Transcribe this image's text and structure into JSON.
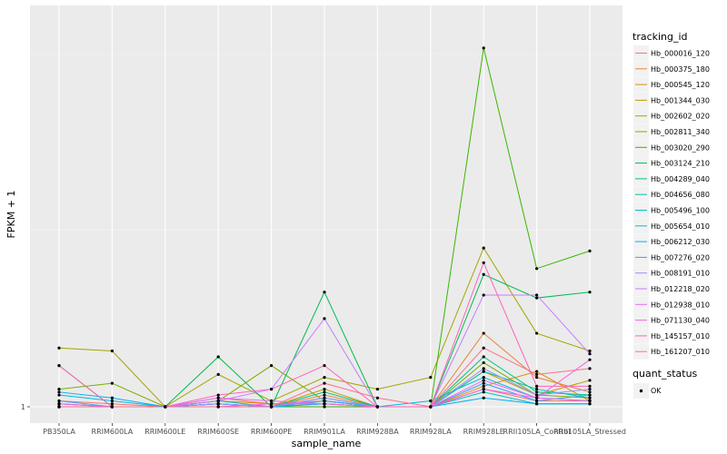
{
  "chart_data": {
    "type": "line",
    "xlabel": "sample_name",
    "ylabel": "FPKM + 1",
    "categories": [
      "PB350LA",
      "RRIM600LA",
      "RRIM600LE",
      "RRIM600SE",
      "RRIM600PE",
      "RRIM901LA",
      "RRIM928BA",
      "RRIM928LA",
      "RRIM928LE",
      "RRII105LA_Control",
      "RRII105LA_Stressed"
    ],
    "y_ticks": [
      {
        "value": 1,
        "label": "1"
      }
    ],
    "ylim": [
      1,
      2.3
    ],
    "grid": true,
    "legend_position": "right",
    "legends": [
      {
        "title": "tracking_id"
      },
      {
        "title": "quant_status",
        "items": [
          {
            "label": "OK"
          }
        ]
      }
    ],
    "series": [
      {
        "name": "Hb_000016_120",
        "color": "#F8766D",
        "values": [
          1.02,
          1.01,
          1.0,
          1.03,
          1.01,
          1.02,
          1.0,
          1.0,
          1.06,
          1.02,
          1.02
        ]
      },
      {
        "name": "Hb_000375_180",
        "color": "#EA8331",
        "values": [
          1.01,
          1.0,
          1.0,
          1.01,
          1.0,
          1.04,
          1.0,
          1.0,
          1.25,
          1.1,
          1.05
        ]
      },
      {
        "name": "Hb_000545_120",
        "color": "#D89000",
        "values": [
          1.0,
          1.0,
          1.0,
          1.02,
          1.01,
          1.01,
          1.0,
          1.0,
          1.07,
          1.12,
          1.02
        ]
      },
      {
        "name": "Hb_001344_030",
        "color": "#C09B00",
        "values": [
          1.01,
          1.0,
          1.0,
          1.01,
          1.0,
          1.06,
          1.0,
          1.0,
          1.12,
          1.04,
          1.09
        ]
      },
      {
        "name": "Hb_002602_020",
        "color": "#A3A500",
        "values": [
          1.2,
          1.19,
          1.0,
          1.11,
          1.02,
          1.1,
          1.06,
          1.1,
          1.54,
          1.25,
          1.19
        ]
      },
      {
        "name": "Hb_002811_340",
        "color": "#7CAE00",
        "values": [
          1.06,
          1.08,
          1.0,
          1.02,
          1.14,
          1.02,
          1.0,
          1.0,
          1.15,
          1.04,
          1.03
        ]
      },
      {
        "name": "Hb_003020_290",
        "color": "#39B600",
        "values": [
          1.0,
          1.0,
          1.0,
          1.01,
          1.0,
          1.0,
          1.0,
          1.0,
          2.22,
          1.47,
          1.53
        ]
      },
      {
        "name": "Hb_003124_210",
        "color": "#00BB4E",
        "values": [
          1.14,
          1.0,
          1.0,
          1.17,
          1.0,
          1.39,
          1.0,
          1.0,
          1.45,
          1.37,
          1.39
        ]
      },
      {
        "name": "Hb_004289_040",
        "color": "#00BF7D",
        "values": [
          1.01,
          1.0,
          1.0,
          1.0,
          1.0,
          1.05,
          1.0,
          1.0,
          1.17,
          1.05,
          1.04
        ]
      },
      {
        "name": "Hb_004656_080",
        "color": "#00C1A3",
        "values": [
          1.0,
          1.0,
          1.0,
          1.01,
          1.0,
          1.02,
          1.0,
          1.0,
          1.12,
          1.06,
          1.03
        ]
      },
      {
        "name": "Hb_005496_100",
        "color": "#00BFC4",
        "values": [
          1.0,
          1.0,
          1.0,
          1.0,
          1.0,
          1.01,
          1.0,
          1.0,
          1.05,
          1.01,
          1.01
        ]
      },
      {
        "name": "Hb_005654_010",
        "color": "#00BAE0",
        "values": [
          1.04,
          1.02,
          1.0,
          1.02,
          1.0,
          1.03,
          1.0,
          1.02,
          1.1,
          1.03,
          1.02
        ]
      },
      {
        "name": "Hb_006212_030",
        "color": "#00B0F6",
        "values": [
          1.05,
          1.03,
          1.0,
          1.01,
          1.0,
          1.01,
          1.0,
          1.0,
          1.03,
          1.01,
          1.01
        ]
      },
      {
        "name": "Hb_007276_020",
        "color": "#35A2FF",
        "values": [
          1.02,
          1.0,
          1.0,
          1.01,
          1.0,
          1.02,
          1.0,
          1.0,
          1.08,
          1.02,
          1.04
        ]
      },
      {
        "name": "Hb_008191_010",
        "color": "#9590FF",
        "values": [
          1.0,
          1.0,
          1.0,
          1.01,
          1.0,
          1.03,
          1.0,
          1.0,
          1.13,
          1.04,
          1.06
        ]
      },
      {
        "name": "Hb_012218_020",
        "color": "#C77CFF",
        "values": [
          1.0,
          1.0,
          1.0,
          1.02,
          1.06,
          1.3,
          1.0,
          1.0,
          1.38,
          1.38,
          1.18
        ]
      },
      {
        "name": "Hb_012938_010",
        "color": "#E76BF3",
        "values": [
          1.01,
          1.0,
          1.0,
          1.03,
          1.02,
          1.01,
          1.0,
          1.0,
          1.09,
          1.03,
          1.02
        ]
      },
      {
        "name": "Hb_071130_040",
        "color": "#FA62DB",
        "values": [
          1.0,
          1.0,
          1.0,
          1.0,
          1.01,
          1.01,
          1.0,
          1.0,
          1.06,
          1.03,
          1.16
        ]
      },
      {
        "name": "Hb_145157_010",
        "color": "#FF62BC",
        "values": [
          1.14,
          1.0,
          1.0,
          1.04,
          1.06,
          1.14,
          1.0,
          1.0,
          1.49,
          1.07,
          1.07
        ]
      },
      {
        "name": "Hb_161207_010",
        "color": "#FF6C91",
        "values": [
          1.0,
          1.0,
          1.0,
          1.0,
          1.0,
          1.08,
          1.03,
          1.0,
          1.2,
          1.11,
          1.13
        ]
      }
    ]
  }
}
